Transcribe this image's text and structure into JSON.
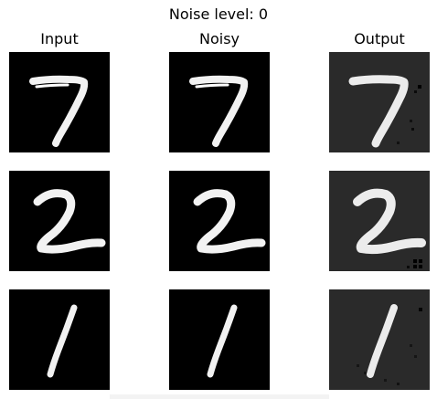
{
  "figure": {
    "suptitle": "Noise level: 0",
    "columns": [
      "Input",
      "Noisy",
      "Output"
    ],
    "rows": [
      {
        "digit": "7"
      },
      {
        "digit": "2"
      },
      {
        "digit": "1"
      }
    ],
    "colors": {
      "clean_background": "#000000",
      "output_background": "#2a2a2a",
      "stroke": "#f2f2f2",
      "output_stroke": "#ececec"
    }
  }
}
